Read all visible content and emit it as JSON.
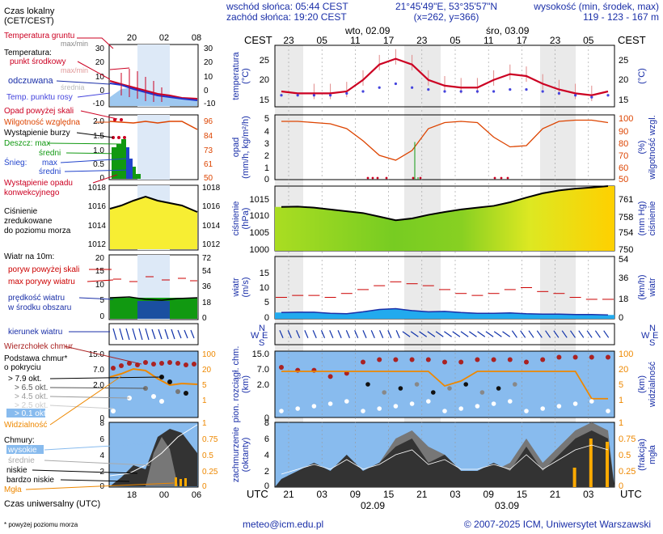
{
  "legend": {
    "local_time_title": "Czas lokalny",
    "local_time_sub": "(CET/CEST)",
    "soil_temp": "Temperatura gruntu",
    "soil_temp_sub": "max/min",
    "temperature": "Temperatura:",
    "mid_point": "punkt środkowy",
    "max_min": "max/min",
    "perceived": "odczuwana",
    "mean": "średnia",
    "dew_point": "Temp. punktu rosy",
    "precip_above": "Opad powyżej skali",
    "humidity": "Wilgotność względna",
    "storm": "Wystąpienie burzy",
    "rain_max": "Deszcz: max",
    "rain_mean": "średni",
    "snow_max": "max",
    "snow_label": "Śnieg:",
    "snow_mean": "średni",
    "conv_precip_1": "Wystąpienie opadu",
    "conv_precip_2": "konwekcyjnego",
    "pressure_1": "Ciśnienie",
    "pressure_2": "zredukowane",
    "pressure_3": "do poziomu morza",
    "wind_title": "Wiatr na 10m:",
    "gust_above": "poryw powyżej skali",
    "max_gust": "max porywy wiatru",
    "wind_speed_1": "prędkość wiatru",
    "wind_speed_2": "w środku obszaru",
    "wind_dir": "kierunek wiatru",
    "cloud_top": "Wierzchołek chmur",
    "cloud_base_1": "Podstawa chmur*",
    "cloud_base_2": "o pokryciu",
    "okt_79": "> 7.9 okt.",
    "okt_65": "> 6.5 okt.",
    "okt_45": "> 4.5 okt.",
    "okt_25": "> 2.5 okt.",
    "okt_01": "> 0.1 okt.",
    "visibility": "Widzialność",
    "clouds": "Chmury:",
    "high": "wysokie",
    "medium": "średnie",
    "low": "niskie",
    "very_low": "bardzo niskie",
    "fog": "Mgła",
    "utc_label": "Czas uniwersalny (UTC)",
    "footnote": "* powyżej poziomu morza",
    "time_top": [
      "20",
      "02",
      "08"
    ],
    "time_bottom": [
      "18",
      "00",
      "06"
    ],
    "ticks_temp": [
      "30",
      "20",
      "10",
      "0",
      "-10"
    ],
    "ticks_precip": [
      "2.0",
      "1.5",
      "1.0",
      "0.5",
      "0"
    ],
    "ticks_hum": [
      "96",
      "84",
      "73",
      "61",
      "50"
    ],
    "ticks_press": [
      "1018",
      "1016",
      "1014",
      "1012"
    ],
    "ticks_wind": [
      "20",
      "15",
      "10",
      "5",
      "0"
    ],
    "ticks_wind_kmh": [
      "72",
      "54",
      "36",
      "18",
      "0"
    ],
    "ticks_cloud_km": [
      "15.0",
      "7.0",
      "2.0",
      "0"
    ],
    "ticks_vis": [
      "100",
      "20",
      "5",
      "1"
    ],
    "ticks_okt": [
      "8",
      "6",
      "4",
      "2",
      "0"
    ],
    "ticks_fog": [
      "1",
      "0.75",
      "0.5",
      "0.25",
      "0"
    ]
  },
  "header": {
    "sunrise": "wschód słońca: 05:44 CEST",
    "sunset": "zachód słońca: 19:20 CEST",
    "coords": "21°45'49\"E, 53°35'57\"N",
    "grid": "(x=262,  y=366)",
    "elev_label": "wysokość (min, środek, max)",
    "elev_value": "119 - 123 - 167 m"
  },
  "main": {
    "cest": "CEST",
    "utc": "UTC",
    "day1": "wto, 02.09",
    "day2": "śro, 03.09",
    "day1_utc": "02.09",
    "day2_utc": "03.09",
    "hours_top": [
      "23",
      "05",
      "11",
      "17",
      "23",
      "05",
      "11",
      "17",
      "23",
      "05"
    ],
    "hours_bottom": [
      "21",
      "03",
      "09",
      "15",
      "21",
      "03",
      "09",
      "15",
      "21",
      "03"
    ],
    "labels": {
      "temp": "temperatura",
      "temp_unit": "(°C)",
      "precip": "opad",
      "precip_unit": "(mm/h, kg/m²/h)",
      "hum_pct": "(%)",
      "hum": "wilgotność wzgl.",
      "press": "ciśnienie",
      "press_unit": "(hPa)",
      "press_mm": "(mm Hg)",
      "press_r": "ciśnienie",
      "wind": "wiatr",
      "wind_unit": "(m/s)",
      "wind_kmh": "(km/h)",
      "wind_r": "wiatr",
      "cloud_1": "pion. rozciągł. chm.",
      "cloud_2": "(km)",
      "vis_1": "(km)",
      "vis_2": "widzialność",
      "cov_1": "zachmurzenie",
      "cov_2": "(oktanty)",
      "fog_1": "(frakcja)",
      "fog_2": "mgła"
    },
    "compass": {
      "n": "N",
      "w": "W",
      "s": "S",
      "e": "E"
    },
    "ticks_temp_l": [
      "25",
      "20",
      "15"
    ],
    "ticks_temp_r": [
      "25",
      "20",
      "15"
    ],
    "ticks_precip_l": [
      "5",
      "4",
      "3",
      "2",
      "1",
      "0"
    ],
    "ticks_hum_r": [
      "100",
      "90",
      "80",
      "70",
      "60",
      "50"
    ],
    "ticks_press_l": [
      "1015",
      "1010",
      "1005",
      "1000"
    ],
    "ticks_press_r": [
      "761",
      "758",
      "754",
      "750"
    ],
    "ticks_wind_l": [
      "15",
      "10",
      "5",
      "0"
    ],
    "ticks_wind_r": [
      "54",
      "36",
      "18",
      "0"
    ],
    "ticks_cloud_l": [
      "15.0",
      "7.0",
      "2.0",
      "0"
    ],
    "ticks_vis_r": [
      "100",
      "20",
      "5",
      "1"
    ],
    "ticks_cov_l": [
      "8",
      "6",
      "4",
      "2",
      "0"
    ],
    "ticks_fog_r": [
      "1",
      "0.75",
      "0.5",
      "0.25",
      "0"
    ]
  },
  "footer": {
    "email": "meteo@icm.edu.pl",
    "copyright": "© 2007-2025 ICM, Uniwersytet Warszawski"
  },
  "colors": {
    "temp": "#cc0022",
    "dew": "#4444dd",
    "precip_line": "#dd4400",
    "rain": "#119911",
    "snow": "#2244cc",
    "wind": "#22aaee",
    "gust": "#cc0000",
    "dir": "#1133aa",
    "cloud_top": "#aa2222",
    "vis": "#ee8800",
    "fog": "#ffaa00",
    "sky": "#88bbee",
    "night": "#dcdcdc"
  },
  "chart_data": {
    "type": "line",
    "x_label": "UTC",
    "x_hours_utc": [
      18,
      21,
      0,
      3,
      6,
      9,
      12,
      15,
      18,
      21,
      0,
      3,
      6,
      9,
      12,
      15,
      18,
      21,
      0,
      3,
      6
    ],
    "temperature_c": [
      17,
      16.5,
      16.5,
      16.5,
      17,
      20,
      24,
      25.5,
      24,
      20,
      18.5,
      18,
      18,
      20,
      21.5,
      21,
      19,
      17.5,
      16.5,
      16,
      17
    ],
    "dew_point_c": [
      16,
      16,
      16,
      16,
      16.5,
      17,
      18,
      19,
      18,
      17.5,
      17,
      17,
      17,
      17,
      17.5,
      17.5,
      17,
      16.5,
      16,
      15.5,
      16
    ],
    "precip_mm_h": [
      0,
      0,
      0,
      0,
      0,
      0,
      0,
      0,
      0,
      0,
      0,
      0,
      0,
      0,
      0,
      0,
      0,
      0,
      0,
      0,
      0
    ],
    "precip_events": [
      {
        "hour": "20.09",
        "value": 3.1
      },
      {
        "hour": "21.09",
        "value": 0.2
      }
    ],
    "humidity_pct": [
      98,
      98,
      97,
      96,
      92,
      82,
      70,
      66,
      74,
      92,
      97,
      98,
      97,
      85,
      77,
      78,
      92,
      98,
      99,
      99,
      97
    ],
    "pressure_hpa": [
      1012.2,
      1012.3,
      1012.0,
      1011.5,
      1011.0,
      1010.5,
      1009.5,
      1008.5,
      1009,
      1010,
      1010.8,
      1011.5,
      1012,
      1012.5,
      1013.5,
      1014.8,
      1016,
      1016.8,
      1017.3,
      1017.6,
      1018
    ],
    "wind_speed_ms": [
      1.6,
      1.7,
      1.7,
      1.4,
      1.3,
      1.8,
      2.4,
      2.6,
      2.1,
      1.8,
      1.9,
      1.6,
      1.4,
      1.4,
      1.5,
      1.3,
      1.2,
      1.2,
      1.1,
      1.1,
      1.0
    ],
    "gust_ms": [
      5.5,
      6,
      6,
      5.5,
      6.5,
      7.5,
      8.5,
      9.5,
      9,
      8.5,
      7.5,
      6.5,
      6,
      6.5,
      7.5,
      8,
      7,
      6.5,
      5.5,
      5,
      5
    ],
    "cloud_top_km": [
      9,
      8,
      8,
      6,
      7,
      11,
      12,
      12,
      12,
      12,
      11,
      11,
      12,
      12,
      12,
      11,
      12,
      13,
      13,
      13,
      13
    ],
    "visibility_km": [
      20,
      20,
      20,
      20,
      20,
      20,
      20,
      20,
      20,
      20,
      5,
      8,
      20,
      20,
      20,
      20,
      20,
      20,
      20,
      1.5,
      1.5
    ],
    "fog_fraction": [
      0,
      0,
      0,
      0,
      0,
      0,
      0,
      0,
      0,
      0,
      0,
      0,
      0,
      0,
      0,
      0,
      0,
      0,
      0.3,
      0.75,
      0.7
    ],
    "ylim_temp": [
      13,
      29
    ],
    "ylim_pressure": [
      1000,
      1018
    ]
  }
}
